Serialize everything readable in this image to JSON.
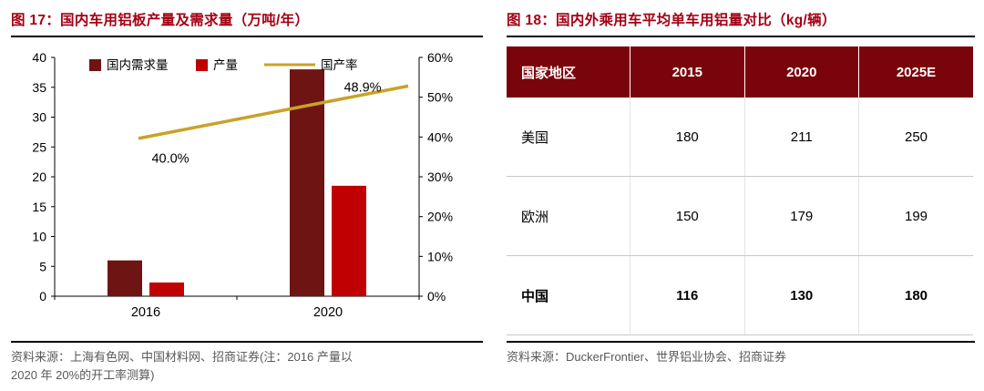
{
  "colors": {
    "title_red": "#a30014",
    "table_header_bg": "#7a040b",
    "bar_demand": "#6e1413",
    "bar_output": "#c00000",
    "line_gold": "#c9a227",
    "source_gray": "#595959",
    "divider_black": "#000000"
  },
  "left_panel": {
    "title": "图 17：国内车用铝板产量及需求量（万吨/年）",
    "source_lines": [
      "资料来源：上海有色网、中国材料网、招商证券(注：2016 产量以",
      "2020 年 20%的开工率测算)"
    ]
  },
  "right_panel": {
    "title": "图 18：国内外乘用车平均单车用铝量对比（kg/辆）",
    "source": "资料来源：DuckerFrontier、世界铝业协会、招商证券"
  },
  "chart_data": [
    {
      "type": "bar",
      "title": "国内车用铝板产量及需求量（万吨/年）",
      "categories": [
        "2016",
        "2020"
      ],
      "series": [
        {
          "name": "国内需求量",
          "kind": "bar",
          "axis": "left",
          "values": [
            6,
            38
          ],
          "color": "#6e1413"
        },
        {
          "name": "产量",
          "kind": "bar",
          "axis": "left",
          "values": [
            2.3,
            18.5
          ],
          "color": "#c00000"
        },
        {
          "name": "国产率",
          "kind": "line",
          "axis": "right",
          "values": [
            40.0,
            48.9
          ],
          "labels": [
            "40.0%",
            "48.9%"
          ],
          "color": "#c9a227"
        }
      ],
      "left_axis": {
        "min": 0,
        "max": 40,
        "step": 5
      },
      "right_axis": {
        "min": 0,
        "max": 60,
        "step": 10,
        "suffix": "%"
      },
      "legend_position": "top",
      "grid": false
    },
    {
      "type": "table",
      "title": "国内外乘用车平均单车用铝量对比（kg/辆）",
      "headers": [
        "国家地区",
        "2015",
        "2020",
        "2025E"
      ],
      "rows": [
        [
          "美国",
          "180",
          "211",
          "250"
        ],
        [
          "欧洲",
          "150",
          "179",
          "199"
        ],
        [
          "中国",
          "116",
          "130",
          "180"
        ]
      ],
      "bold_row_index": 2
    }
  ]
}
